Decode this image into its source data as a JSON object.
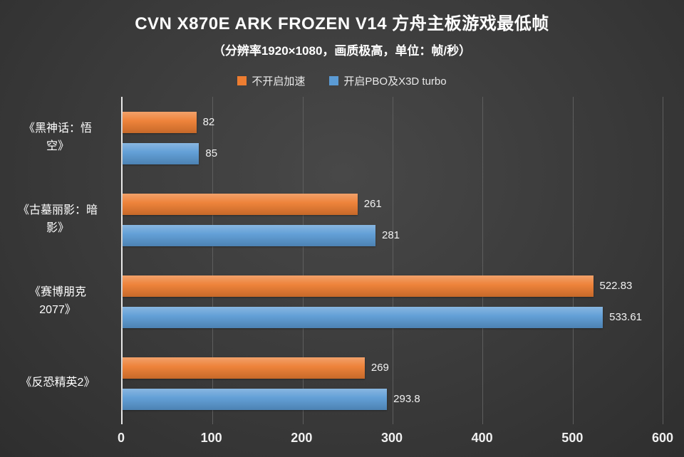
{
  "chart_data": {
    "type": "bar",
    "orientation": "horizontal",
    "title": "CVN X870E ARK FROZEN V14 方舟主板游戏最低帧",
    "subtitle": "（分辨率1920×1080，画质极高，单位：帧/秒）",
    "categories": [
      "《黑神话：悟空》",
      "《古墓丽影：暗影》",
      "《赛博朋克2077》",
      "《反恐精英2》"
    ],
    "category_labels": [
      "《黑神话：悟\n空》",
      "《古墓丽影：暗\n影》",
      "《赛博朋克\n2077》",
      "《反恐精英2》"
    ],
    "series": [
      {
        "name": "不开启加速",
        "color": "#ED7D31",
        "values": [
          82,
          261,
          522.83,
          269
        ],
        "labels": [
          "82",
          "261",
          "522.83",
          "269"
        ]
      },
      {
        "name": "开启PBO及X3D turbo",
        "color": "#5B9BD5",
        "values": [
          85,
          281,
          533.61,
          293.8
        ],
        "labels": [
          "85",
          "281",
          "533.61",
          "293.8"
        ]
      }
    ],
    "xlabel": "",
    "ylabel": "",
    "xlim": [
      0,
      600
    ],
    "xticks": [
      "0",
      "100",
      "200",
      "300",
      "400",
      "500",
      "600"
    ],
    "grid": true,
    "legend_position": "top"
  },
  "colors": {
    "background": "#3a3a3a",
    "text": "#ffffff",
    "gridline": "#5e5e5e",
    "axis_line": "#e8e8e8",
    "series1": "#ED7D31",
    "series2": "#5B9BD5"
  }
}
